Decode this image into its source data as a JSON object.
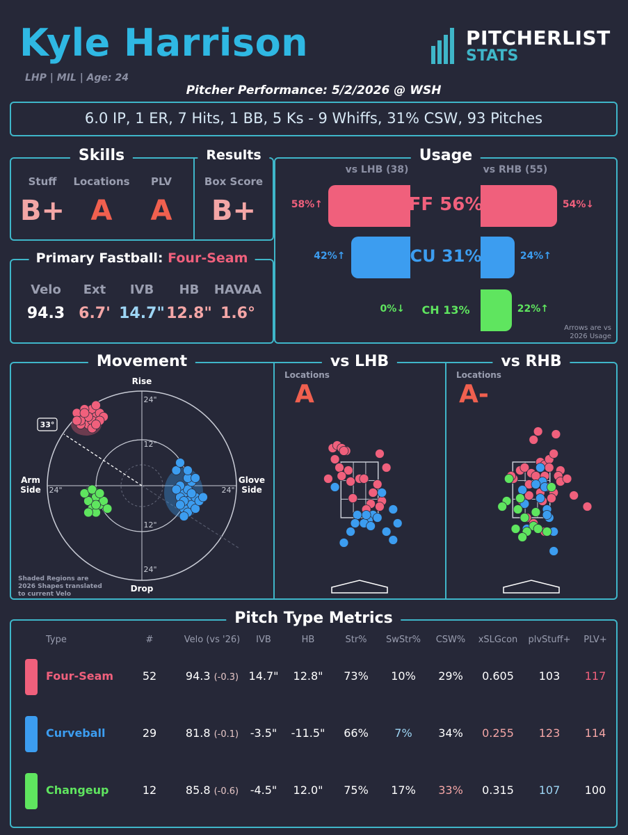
{
  "header": {
    "name": "Kyle Harrison",
    "meta": "LHP | MIL | Age: 24",
    "brand_top": "PITCHERLIST",
    "brand_bottom": "STATS",
    "subtitle": "Pitcher Performance: 5/2/2026 @ WSH",
    "summary": "6.0 IP, 1 ER, 7 Hits, 1 BB, 5 Ks - 9 Whiffs, 31% CSW, 93 Pitches"
  },
  "skills": {
    "title": "Skills",
    "items": [
      {
        "label": "Stuff",
        "grade": "B+"
      },
      {
        "label": "Locations",
        "grade": "A"
      },
      {
        "label": "PLV",
        "grade": "A"
      }
    ]
  },
  "results": {
    "title": "Results",
    "label": "Box Score",
    "grade": "B+"
  },
  "fastball": {
    "title": "Primary Fastball:",
    "pitch": "Four-Seam",
    "metrics": [
      {
        "label": "Velo",
        "value": "94.3"
      },
      {
        "label": "Ext",
        "value": "6.7'"
      },
      {
        "label": "IVB",
        "value": "14.7\""
      },
      {
        "label": "HB",
        "value": "12.8\""
      },
      {
        "label": "HAVAA",
        "value": "1.6°"
      }
    ]
  },
  "usage": {
    "title": "Usage",
    "lhb_label": "vs LHB (38)",
    "rhb_label": "vs RHB (55)",
    "note_line1": "Arrows are vs",
    "note_line2": "2026 Usage",
    "rows": [
      {
        "pitch": "FF 56%",
        "lhb": 58,
        "lhb_text": "58%↑",
        "rhb": 54,
        "rhb_text": "54%↓",
        "color": "#f0607c"
      },
      {
        "pitch": "CU 31%",
        "lhb": 42,
        "lhb_text": "42%↑",
        "rhb": 24,
        "rhb_text": "24%↑",
        "color": "#3c9df0"
      },
      {
        "pitch": "CH 13%",
        "lhb": 0,
        "lhb_text": "0%↓",
        "rhb": 22,
        "rhb_text": "22%↑",
        "color": "#5fe55f"
      }
    ]
  },
  "movement": {
    "title": "Movement",
    "rise": "Rise",
    "drop": "Drop",
    "arm": "Arm",
    "arm2": "Side",
    "glove": "Glove",
    "glove2": "Side",
    "angle": "33°",
    "ring_24": "24\"",
    "ring_12": "12\"",
    "note1": "Shaded Regions are",
    "note2": "2026 Shapes translated",
    "note3": "to current Velo"
  },
  "lhb": {
    "title": "vs LHB",
    "label": "Locations",
    "grade": "A"
  },
  "rhb": {
    "title": "vs RHB",
    "label": "Locations",
    "grade": "A-"
  },
  "metrics": {
    "title": "Pitch Type Metrics",
    "headers": [
      "Type",
      "#",
      "Velo (vs '26)",
      "IVB",
      "HB",
      "Str%",
      "SwStr%",
      "CSW%",
      "xSLGcon",
      "plvStuff+",
      "PLV+"
    ],
    "rows": [
      {
        "type": "Four-Seam",
        "color": "#f0607c",
        "n": "52",
        "velo": "94.3",
        "velo_diff": "(-0.3)",
        "ivb": "14.7\"",
        "hb": "12.8\"",
        "str": "73%",
        "swstr": "10%",
        "csw": "29%",
        "xslg": "0.605",
        "stuff": "103",
        "plv": "117"
      },
      {
        "type": "Curveball",
        "color": "#3c9df0",
        "n": "29",
        "velo": "81.8",
        "velo_diff": "(-0.1)",
        "ivb": "-3.5\"",
        "hb": "-11.5\"",
        "str": "66%",
        "swstr": "7%",
        "csw": "34%",
        "xslg": "0.255",
        "stuff": "123",
        "plv": "114"
      },
      {
        "type": "Changeup",
        "color": "#5fe55f",
        "n": "12",
        "velo": "85.8",
        "velo_diff": "(-0.6)",
        "ivb": "-4.5\"",
        "hb": "12.0\"",
        "str": "75%",
        "swstr": "17%",
        "csw": "33%",
        "xslg": "0.315",
        "stuff": "107",
        "plv": "100"
      }
    ]
  },
  "chart_data": [
    {
      "type": "scatter",
      "title": "Movement",
      "xlabel": "HB",
      "ylabel": "IVB",
      "xlim": [
        -28,
        28
      ],
      "ylim": [
        -28,
        28
      ],
      "series": [
        {
          "name": "Four-Seam",
          "color": "#f0607c",
          "points": [
            [
              -16,
              18
            ],
            [
              -14,
              19
            ],
            [
              -15,
              17
            ],
            [
              -13,
              20
            ],
            [
              -17,
              19
            ],
            [
              -12,
              18
            ],
            [
              -14,
              16
            ],
            [
              -16,
              16
            ],
            [
              -11,
              19
            ],
            [
              -13,
              17
            ],
            [
              -15,
              20
            ],
            [
              -12,
              21
            ],
            [
              -10,
              18
            ],
            [
              -14,
              18
            ],
            [
              -16,
              17
            ],
            [
              -11,
              17
            ],
            [
              -13,
              15
            ],
            [
              -15,
              19
            ],
            [
              -12,
              16
            ],
            [
              -17,
              17
            ]
          ]
        },
        {
          "name": "Curveball",
          "color": "#3c9df0",
          "points": [
            [
              11,
              -2
            ],
            [
              12,
              -4
            ],
            [
              10,
              -3
            ],
            [
              13,
              -5
            ],
            [
              12,
              -1
            ],
            [
              11,
              -6
            ],
            [
              14,
              -3
            ],
            [
              10,
              0
            ],
            [
              13,
              -2
            ],
            [
              12,
              -7
            ],
            [
              9,
              -1
            ],
            [
              14,
              -6
            ],
            [
              11,
              -4
            ],
            [
              13,
              1
            ],
            [
              10,
              -5
            ],
            [
              12,
              2
            ],
            [
              15,
              -4
            ],
            [
              11,
              -8
            ],
            [
              9,
              4
            ],
            [
              12,
              4
            ],
            [
              14,
              2
            ],
            [
              10,
              6
            ],
            [
              16,
              -3
            ]
          ]
        },
        {
          "name": "Changeup",
          "color": "#5fe55f",
          "points": [
            [
              -12,
              -3
            ],
            [
              -14,
              -4
            ],
            [
              -13,
              -6
            ],
            [
              -11,
              -5
            ],
            [
              -15,
              -2
            ],
            [
              -12,
              -7
            ],
            [
              -10,
              -4
            ],
            [
              -14,
              -7
            ],
            [
              -13,
              -1
            ],
            [
              -11,
              -2
            ],
            [
              -9,
              -6
            ],
            [
              -12,
              -5
            ]
          ]
        }
      ]
    },
    {
      "type": "scatter",
      "title": "vs LHB",
      "xlim": [
        -2.5,
        2.5
      ],
      "ylim": [
        0,
        5
      ],
      "series": [
        {
          "name": "Four-Seam",
          "color": "#f0607c",
          "points": [
            [
              -1.2,
              4.0
            ],
            [
              -1.0,
              4.1
            ],
            [
              -0.8,
              4.0
            ],
            [
              -0.6,
              3.9
            ],
            [
              -0.7,
              3.9
            ],
            [
              -1.1,
              3.6
            ],
            [
              -0.9,
              3.3
            ],
            [
              -0.5,
              3.2
            ],
            [
              0.0,
              2.9
            ],
            [
              0.2,
              2.9
            ],
            [
              0.9,
              3.8
            ],
            [
              -1.4,
              2.9
            ],
            [
              -0.4,
              2.8
            ],
            [
              0.8,
              2.7
            ],
            [
              0.6,
              2.4
            ],
            [
              1.0,
              2.1
            ],
            [
              0.5,
              2.0
            ],
            [
              -0.3,
              2.2
            ],
            [
              0.3,
              1.8
            ],
            [
              0.9,
              1.9
            ],
            [
              1.2,
              3.3
            ],
            [
              -0.8,
              3.0
            ]
          ]
        },
        {
          "name": "Curveball",
          "color": "#3c9df0",
          "points": [
            [
              -1.1,
              2.6
            ],
            [
              1.0,
              2.4
            ],
            [
              0.6,
              1.6
            ],
            [
              0.4,
              1.4
            ],
            [
              0.8,
              1.5
            ],
            [
              -0.1,
              1.6
            ],
            [
              -0.2,
              1.3
            ],
            [
              1.5,
              1.8
            ],
            [
              0.2,
              1.3
            ],
            [
              0.5,
              1.2
            ],
            [
              -0.4,
              1.0
            ],
            [
              1.2,
              1.0
            ],
            [
              1.5,
              0.7
            ],
            [
              -0.7,
              0.6
            ],
            [
              0.3,
              1.6
            ],
            [
              1.7,
              1.3
            ]
          ]
        }
      ]
    },
    {
      "type": "scatter",
      "title": "vs RHB",
      "xlim": [
        -2.5,
        2.5
      ],
      "ylim": [
        0,
        5
      ],
      "series": [
        {
          "name": "Four-Seam",
          "color": "#f0607c",
          "points": [
            [
              0.3,
              4.6
            ],
            [
              1.1,
              4.5
            ],
            [
              0.1,
              4.3
            ],
            [
              0.4,
              3.5
            ],
            [
              0.6,
              3.4
            ],
            [
              0.8,
              3.6
            ],
            [
              1.0,
              3.8
            ],
            [
              1.3,
              3.2
            ],
            [
              -0.5,
              3.2
            ],
            [
              -0.3,
              3.3
            ],
            [
              0.0,
              3.1
            ],
            [
              0.2,
              3.0
            ],
            [
              0.6,
              3.0
            ],
            [
              1.2,
              3.0
            ],
            [
              -0.8,
              2.9
            ],
            [
              -0.1,
              2.7
            ],
            [
              0.7,
              2.6
            ],
            [
              1.0,
              2.4
            ],
            [
              0.4,
              2.4
            ],
            [
              -0.4,
              2.1
            ],
            [
              -0.1,
              2.3
            ],
            [
              0.5,
              2.1
            ],
            [
              0.9,
              2.2
            ],
            [
              1.3,
              2.8
            ],
            [
              1.9,
              2.3
            ],
            [
              2.5,
              1.9
            ],
            [
              1.6,
              2.9
            ],
            [
              -0.9,
              3.0
            ],
            [
              -0.2,
              1.5
            ],
            [
              0.1,
              1.3
            ],
            [
              0.6,
              1.0
            ],
            [
              0.8,
              3.3
            ]
          ]
        },
        {
          "name": "Curveball",
          "color": "#3c9df0",
          "points": [
            [
              0.4,
              3.3
            ],
            [
              0.5,
              2.8
            ],
            [
              0.2,
              2.7
            ],
            [
              0.6,
              2.6
            ],
            [
              0.4,
              2.2
            ],
            [
              0.7,
              1.8
            ],
            [
              0.8,
              1.5
            ],
            [
              0.7,
              1.6
            ],
            [
              1.0,
              1.0
            ],
            [
              -0.3,
              2.0
            ],
            [
              -0.4,
              2.5
            ],
            [
              1.0,
              0.3
            ],
            [
              -0.2,
              1.1
            ]
          ]
        },
        {
          "name": "Changeup",
          "color": "#5fe55f",
          "points": [
            [
              -1.0,
              2.9
            ],
            [
              -1.1,
              2.1
            ],
            [
              -0.5,
              2.2
            ],
            [
              -0.6,
              1.8
            ],
            [
              -0.3,
              1.5
            ],
            [
              0.1,
              1.2
            ],
            [
              -0.2,
              1.0
            ],
            [
              0.3,
              1.1
            ],
            [
              -0.4,
              0.8
            ],
            [
              -0.7,
              1.1
            ],
            [
              0.7,
              1.0
            ],
            [
              0.2,
              1.7
            ],
            [
              0.9,
              2.6
            ],
            [
              -1.3,
              1.9
            ]
          ]
        }
      ]
    },
    {
      "type": "bar",
      "title": "Usage",
      "categories": [
        "FF",
        "CU",
        "CH"
      ],
      "series": [
        {
          "name": "vs LHB (38)",
          "values": [
            58,
            42,
            0
          ]
        },
        {
          "name": "vs RHB (55)",
          "values": [
            54,
            24,
            22
          ]
        }
      ]
    }
  ]
}
